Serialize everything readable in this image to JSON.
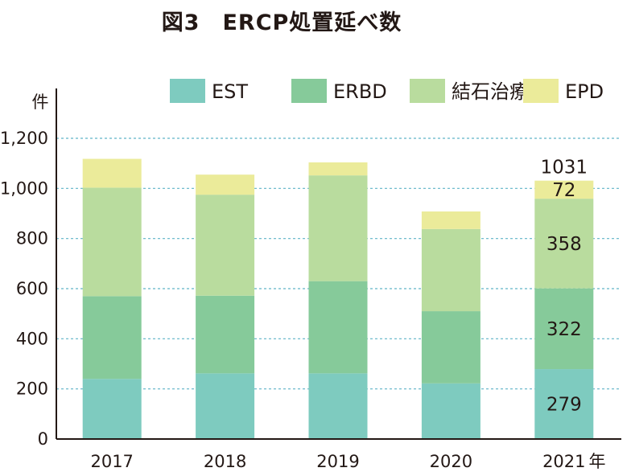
{
  "chart_data": {
    "type": "bar",
    "stacked": true,
    "title": "図3　ERCP処置延べ数",
    "ylabel": "件",
    "xlabel": "年",
    "categories": [
      "2017",
      "2018",
      "2019",
      "2020",
      "2021"
    ],
    "ylim": [
      0,
      1200
    ],
    "yticks": [
      "0",
      "200",
      "400",
      "600",
      "800",
      "1,000",
      "1,200"
    ],
    "grid": true,
    "legend_position": "top",
    "series": [
      {
        "name": "EST",
        "color": "#7ecbbf",
        "values": [
          240,
          262,
          262,
          222,
          279
        ]
      },
      {
        "name": "ERBD",
        "color": "#86ca9a",
        "values": [
          330,
          310,
          368,
          288,
          322
        ]
      },
      {
        "name": "結石治療",
        "color": "#b9dc9e",
        "values": [
          433,
          403,
          422,
          328,
          358
        ]
      },
      {
        "name": "EPD",
        "color": "#ebeb9a",
        "values": [
          115,
          80,
          52,
          70,
          72
        ]
      }
    ],
    "annotations": {
      "category": "2021",
      "total": "1031",
      "segment_labels": [
        "279",
        "322",
        "358",
        "72"
      ]
    }
  }
}
